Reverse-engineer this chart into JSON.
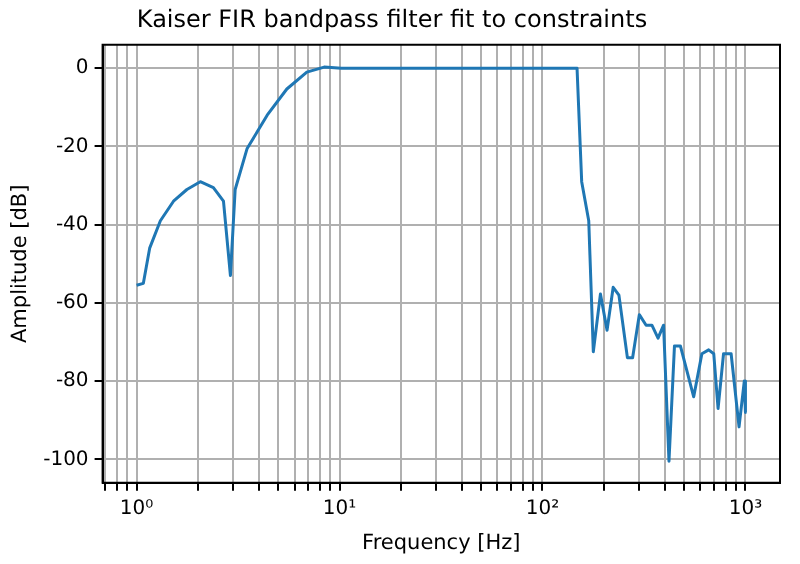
{
  "chart_data": {
    "type": "line",
    "title": "Kaiser FIR bandpass filter fit to constraints",
    "xlabel": "Frequency [Hz]",
    "ylabel": "Amplitude [dB]",
    "log": "x",
    "grid": true,
    "legend": false,
    "marker": "none",
    "line_style": "solid",
    "xlim": [
      0.68,
      1480
    ],
    "ylim": [
      -106,
      6
    ],
    "xticks": [
      {
        "value": 0.7,
        "label": null
      },
      {
        "value": 0.8,
        "label": null
      },
      {
        "value": 0.9,
        "label": null
      },
      {
        "value": 1,
        "label": "10⁰"
      },
      {
        "value": 2,
        "label": null
      },
      {
        "value": 3,
        "label": null
      },
      {
        "value": 4,
        "label": null
      },
      {
        "value": 5,
        "label": null
      },
      {
        "value": 6,
        "label": null
      },
      {
        "value": 7,
        "label": null
      },
      {
        "value": 8,
        "label": null
      },
      {
        "value": 9,
        "label": null
      },
      {
        "value": 10,
        "label": "10¹"
      },
      {
        "value": 20,
        "label": null
      },
      {
        "value": 30,
        "label": null
      },
      {
        "value": 40,
        "label": null
      },
      {
        "value": 50,
        "label": null
      },
      {
        "value": 60,
        "label": null
      },
      {
        "value": 70,
        "label": null
      },
      {
        "value": 80,
        "label": null
      },
      {
        "value": 90,
        "label": null
      },
      {
        "value": 100,
        "label": "10²"
      },
      {
        "value": 200,
        "label": null
      },
      {
        "value": 300,
        "label": null
      },
      {
        "value": 400,
        "label": null
      },
      {
        "value": 500,
        "label": null
      },
      {
        "value": 600,
        "label": null
      },
      {
        "value": 700,
        "label": null
      },
      {
        "value": 800,
        "label": null
      },
      {
        "value": 900,
        "label": null
      },
      {
        "value": 1000,
        "label": "10³"
      }
    ],
    "yticks": [
      0,
      -20,
      -40,
      -60,
      -80,
      -100
    ],
    "series": [
      {
        "color": "#1f77b4",
        "x": [
          1,
          1.08,
          1.16,
          1.31,
          1.52,
          1.77,
          2.06,
          2.39,
          2.68,
          2.9,
          3.06,
          3.5,
          4.4,
          5.5,
          6.9,
          8.4,
          10.2,
          148,
          156,
          169,
          178,
          193,
          208,
          223,
          238,
          262,
          278,
          300,
          324,
          346,
          371,
          395,
          420,
          447,
          478,
          556,
          610,
          659,
          698,
          733,
          780,
          850,
          930,
          987,
          1000
        ],
        "values": [
          -55.5,
          -55,
          -46,
          -39,
          -34,
          -31,
          -29,
          -30.5,
          -34,
          -53,
          -31,
          -20.6,
          -12,
          -5.3,
          -1,
          0.3,
          0,
          0,
          -29,
          -39,
          -72.5,
          -57.7,
          -67,
          -56,
          -58,
          -74,
          -74,
          -63,
          -65.7,
          -65.7,
          -69,
          -65.7,
          -100.5,
          -71,
          -71,
          -84,
          -73,
          -72,
          -73,
          -87,
          -73,
          -73,
          -91.7,
          -80,
          -88
        ]
      }
    ]
  }
}
